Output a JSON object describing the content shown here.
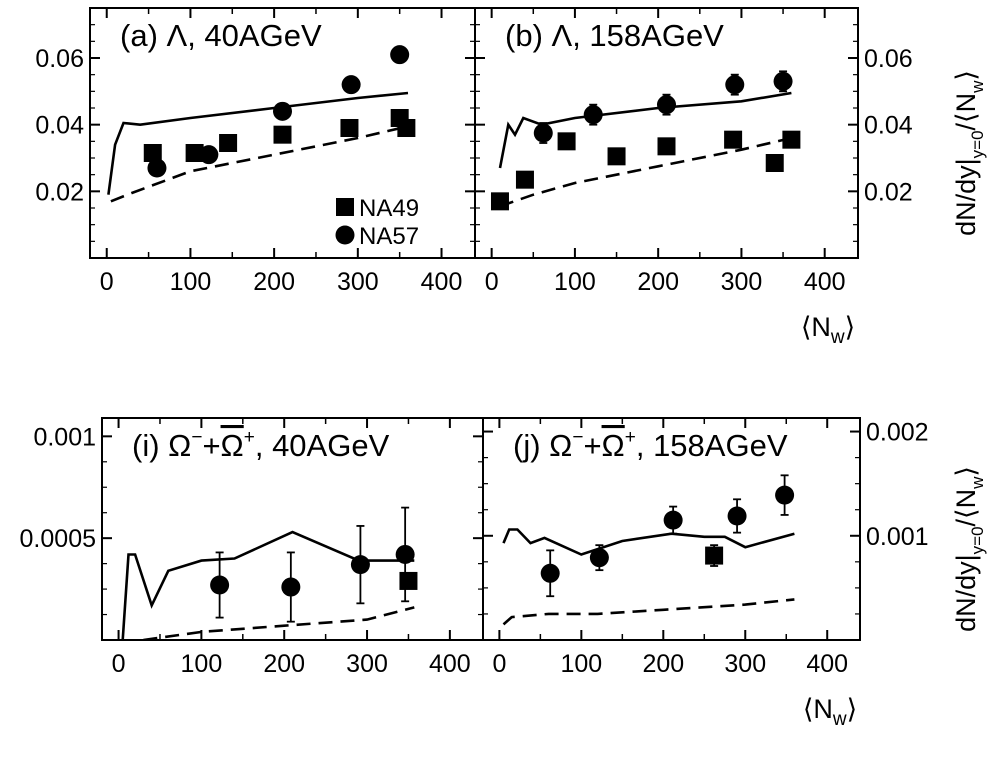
{
  "chart_data": [
    {
      "type": "scatter",
      "title": "(a)  Λ, 40AGeV",
      "xlabel": "",
      "ylabel": "",
      "xlim": [
        -20,
        440
      ],
      "ylim": [
        0.0,
        0.075
      ],
      "xticks": [
        0,
        100,
        200,
        300,
        400
      ],
      "xtick_labels": [
        "0",
        "100",
        "200",
        "300",
        "400"
      ],
      "yticks": [
        0.02,
        0.04,
        0.06
      ],
      "ytick_labels": [
        "0.02",
        "0.04",
        "0.06"
      ],
      "ytick_side": "left",
      "legend": {
        "position": "bottom-right",
        "entries": [
          {
            "label": "NA49",
            "marker": "square"
          },
          {
            "label": "NA57",
            "marker": "circle"
          }
        ]
      },
      "series": [
        {
          "name": "NA49",
          "marker": "square",
          "x": [
            55,
            105,
            145,
            210,
            290,
            350,
            358
          ],
          "y": [
            0.0315,
            0.0315,
            0.0345,
            0.037,
            0.039,
            0.042,
            0.039
          ],
          "err": [
            0,
            0,
            0,
            0,
            0,
            0,
            0
          ]
        },
        {
          "name": "NA57",
          "marker": "circle",
          "x": [
            60,
            122,
            210,
            292,
            350
          ],
          "y": [
            0.027,
            0.031,
            0.044,
            0.052,
            0.061
          ],
          "err": [
            0,
            0,
            0,
            0,
            0
          ]
        },
        {
          "style": "solid",
          "x": [
            2,
            10,
            20,
            40,
            100,
            200,
            300,
            360
          ],
          "y": [
            0.019,
            0.034,
            0.0405,
            0.04,
            0.042,
            0.045,
            0.048,
            0.0495
          ]
        },
        {
          "style": "dashed",
          "x": [
            5,
            30,
            100,
            200,
            300,
            360
          ],
          "y": [
            0.017,
            0.0195,
            0.026,
            0.031,
            0.036,
            0.0395
          ]
        }
      ]
    },
    {
      "type": "scatter",
      "title": "(b)  Λ, 158AGeV",
      "xlabel": "⟨Nw⟩",
      "ylabel": "dN/dy|y=0/⟨Nw⟩",
      "xlim": [
        -20,
        440
      ],
      "ylim": [
        0.0,
        0.075
      ],
      "xticks": [
        0,
        100,
        200,
        300,
        400
      ],
      "xtick_labels": [
        "0",
        "100",
        "200",
        "300",
        "400"
      ],
      "yticks": [
        0.02,
        0.04,
        0.06
      ],
      "ytick_labels": [
        "0.02",
        "0.04",
        "0.06"
      ],
      "ytick_side": "right",
      "series": [
        {
          "name": "NA49",
          "marker": "square",
          "x": [
            10,
            40,
            90,
            150,
            210,
            290,
            340,
            360
          ],
          "y": [
            0.017,
            0.0235,
            0.035,
            0.0305,
            0.0335,
            0.0355,
            0.0285,
            0.0355
          ],
          "err": [
            0,
            0.002,
            0,
            0,
            0,
            0,
            0.002,
            0
          ]
        },
        {
          "name": "NA57",
          "marker": "circle",
          "x": [
            62,
            122,
            210,
            292,
            350
          ],
          "y": [
            0.0375,
            0.043,
            0.046,
            0.052,
            0.053
          ],
          "err": [
            0.003,
            0.003,
            0.003,
            0.003,
            0.003
          ]
        },
        {
          "style": "solid",
          "x": [
            10,
            20,
            28,
            38,
            60,
            100,
            200,
            300,
            360
          ],
          "y": [
            0.027,
            0.04,
            0.037,
            0.042,
            0.04,
            0.042,
            0.045,
            0.047,
            0.0495
          ]
        },
        {
          "style": "dashed",
          "x": [
            10,
            50,
            100,
            200,
            300,
            360
          ],
          "y": [
            0.0155,
            0.019,
            0.0225,
            0.0275,
            0.0325,
            0.036
          ]
        }
      ]
    },
    {
      "type": "scatter",
      "title": "(i)  Ω⁻+Ω̄⁺, 40AGeV",
      "xlabel": "",
      "ylabel": "",
      "xlim": [
        -20,
        440
      ],
      "ylim": [
        0.0,
        0.00109
      ],
      "xticks": [
        0,
        100,
        200,
        300,
        400
      ],
      "xtick_labels": [
        "0",
        "100",
        "200",
        "300",
        "400"
      ],
      "yticks": [
        0.0005,
        0.001
      ],
      "ytick_labels": [
        "0.0005",
        "0.001"
      ],
      "ytick_side": "left",
      "series": [
        {
          "name": "NA49",
          "marker": "square",
          "x": [
            350
          ],
          "y": [
            0.00029
          ],
          "err": [
            0
          ]
        },
        {
          "name": "NA57",
          "marker": "circle",
          "x": [
            122,
            208,
            292,
            346
          ],
          "y": [
            0.00027,
            0.00026,
            0.00037,
            0.00042
          ],
          "err": [
            0.00016,
            0.00017,
            0.00019,
            0.00023
          ]
        },
        {
          "style": "solid",
          "x": [
            5,
            12,
            20,
            40,
            60,
            100,
            140,
            210,
            290,
            345,
            357
          ],
          "y": [
            0.0,
            0.00042,
            0.00042,
            0.00017,
            0.00034,
            0.00039,
            0.0004,
            0.00053,
            0.00039,
            0.00039,
            0.00039
          ]
        },
        {
          "style": "dashed",
          "x": [
            30,
            100,
            200,
            300,
            357
          ],
          "y": [
            0.0,
            4e-05,
            7e-05,
            0.0001,
            0.00016
          ]
        }
      ]
    },
    {
      "type": "scatter",
      "title": "(j)  Ω⁻+Ω̄⁺, 158AGeV",
      "xlabel": "⟨Nw⟩",
      "ylabel": "dN/dy|y=0/⟨Nw⟩",
      "xlim": [
        -20,
        440
      ],
      "ylim": [
        0.0,
        0.00213
      ],
      "xticks": [
        0,
        100,
        200,
        300,
        400
      ],
      "xtick_labels": [
        "0",
        "100",
        "200",
        "300",
        "400"
      ],
      "yticks": [
        0.001,
        0.002
      ],
      "ytick_labels": [
        "0.001",
        "0.002"
      ],
      "ytick_side": "right",
      "series": [
        {
          "name": "NA49",
          "marker": "square",
          "x": [
            262
          ],
          "y": [
            0.00081
          ],
          "err": [
            0.0001
          ]
        },
        {
          "name": "NA57",
          "marker": "circle",
          "x": [
            62,
            122,
            212,
            290,
            348
          ],
          "y": [
            0.00064,
            0.00079,
            0.00115,
            0.00119,
            0.00139
          ],
          "err": [
            0.00022,
            0.00012,
            0.00013,
            0.00016,
            0.00019
          ]
        },
        {
          "style": "solid",
          "x": [
            5,
            12,
            22,
            38,
            55,
            100,
            150,
            210,
            250,
            275,
            300,
            360
          ],
          "y": [
            0.00093,
            0.00106,
            0.00106,
            0.00093,
            0.00098,
            0.00082,
            0.00095,
            0.00102,
            0.00099,
            0.00099,
            0.00089,
            0.00102
          ]
        },
        {
          "style": "dashed",
          "x": [
            5,
            15,
            60,
            120,
            200,
            300,
            360
          ],
          "y": [
            0.00015,
            0.00022,
            0.00025,
            0.00025,
            0.00029,
            0.00034,
            0.00039
          ]
        }
      ]
    }
  ]
}
